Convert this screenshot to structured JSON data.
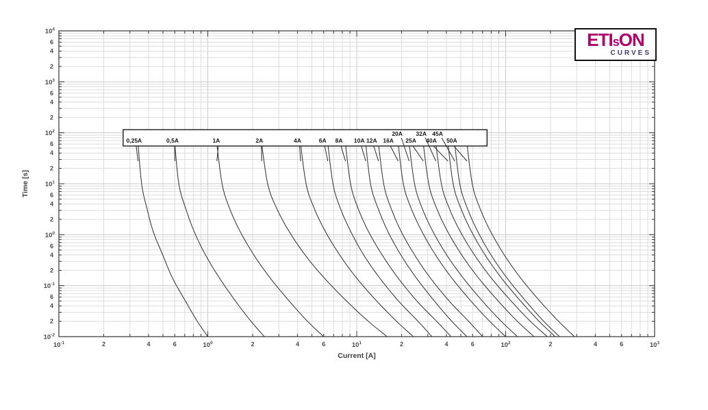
{
  "page": {
    "background": "#ffffff"
  },
  "logo": {
    "part1": "ETI",
    "part2": "s",
    "part3": "ON",
    "subtitle": "CURVES",
    "main_color": "#b0046a",
    "subtitle_color": "#403672"
  },
  "chart_data": {
    "type": "line",
    "title": "",
    "xlabel": "Current [A]",
    "ylabel": "Time [s]",
    "xscale": "log",
    "yscale": "log",
    "xlim": [
      0.1,
      1000
    ],
    "ylim": [
      0.01,
      10000
    ],
    "grid": true,
    "x_major_exponents": [
      -1,
      0,
      1,
      2,
      3
    ],
    "y_major_exponents": [
      -2,
      -1,
      0,
      1,
      2,
      3,
      4
    ],
    "labeled_minor_multiples": [
      2,
      4,
      6
    ],
    "curve_color": "#3c3c3c",
    "grid_minor_color": "#dcdcdc",
    "grid_major_color": "#c9c9c9",
    "axis_color": "#333333",
    "tick_label_color": "#4a4a4a",
    "t_samples": [
      60,
      9.6,
      3.3,
      1.15,
      0.39,
      0.14,
      0.049,
      0.02,
      0.01
    ],
    "series": [
      {
        "name": "0,25A",
        "label_row": "bottom",
        "label_anchor_current": 0.32,
        "currents": [
          0.34,
          0.36,
          0.39,
          0.43,
          0.5,
          0.58,
          0.71,
          0.85,
          1.0
        ]
      },
      {
        "name": "0,5A",
        "label_row": "bottom",
        "label_anchor_current": 0.58,
        "currents": [
          0.6,
          0.64,
          0.71,
          0.81,
          0.97,
          1.2,
          1.54,
          1.95,
          2.4
        ]
      },
      {
        "name": "1A",
        "label_row": "bottom",
        "label_anchor_current": 1.14,
        "currents": [
          1.15,
          1.25,
          1.4,
          1.65,
          2.05,
          2.63,
          3.54,
          4.67,
          6.0
        ]
      },
      {
        "name": "2A",
        "label_row": "bottom",
        "label_anchor_current": 2.22,
        "currents": [
          2.3,
          2.53,
          2.9,
          3.52,
          4.53,
          6.07,
          8.6,
          11.96,
          16.0
        ]
      },
      {
        "name": "4A",
        "label_row": "bottom",
        "label_anchor_current": 4.0,
        "currents": [
          4.2,
          4.58,
          5.18,
          6.16,
          7.73,
          10.0,
          13.7,
          18.5,
          24.0
        ]
      },
      {
        "name": "6A",
        "label_row": "bottom",
        "label_anchor_current": 5.9,
        "currents": [
          6.4,
          6.94,
          7.76,
          9.12,
          11.2,
          14.3,
          19.2,
          25.8,
          32.0
        ]
      },
      {
        "name": "8A",
        "label_row": "bottom",
        "label_anchor_current": 7.6,
        "currents": [
          8.4,
          9.11,
          10.2,
          12.0,
          14.9,
          19.0,
          25.5,
          34.4,
          43.0
        ]
      },
      {
        "name": "10A",
        "label_row": "bottom",
        "label_anchor_current": 10.4,
        "currents": [
          11.5,
          12.4,
          13.9,
          16.2,
          19.9,
          25.2,
          33.4,
          43.5,
          55.0
        ]
      },
      {
        "name": "12A",
        "label_row": "bottom",
        "label_anchor_current": 12.6,
        "currents": [
          14.0,
          15.2,
          17.0,
          19.9,
          24.6,
          31.3,
          42.0,
          56.4,
          70.0
        ]
      },
      {
        "name": "16A",
        "label_row": "bottom",
        "label_anchor_current": 16.3,
        "currents": [
          19.0,
          20.6,
          23.2,
          27.4,
          34.0,
          43.6,
          58.8,
          78.1,
          100.0
        ]
      },
      {
        "name": "20A",
        "label_row": "top",
        "label_anchor_current": 18.7,
        "currents": [
          22.5,
          24.5,
          27.5,
          32.5,
          40.4,
          52.0,
          70.2,
          93.4,
          120.0
        ]
      },
      {
        "name": "25A",
        "label_row": "bottom",
        "label_anchor_current": 23.1,
        "currents": [
          28.0,
          30.5,
          34.4,
          40.8,
          51.0,
          65.9,
          89.7,
          119.8,
          155.0
        ]
      },
      {
        "name": "32A",
        "label_row": "top",
        "label_anchor_current": 27.1,
        "currents": [
          34.0,
          37.1,
          41.8,
          49.6,
          62.1,
          80.3,
          109.5,
          146.5,
          190.0
        ]
      },
      {
        "name": "40A",
        "label_row": "bottom",
        "label_anchor_current": 31.7,
        "currents": [
          41.0,
          44.5,
          50.0,
          59.0,
          73.2,
          93.9,
          126.7,
          167.7,
          215.0
        ]
      },
      {
        "name": "45A",
        "label_row": "top",
        "label_anchor_current": 34.9,
        "currents": [
          45.5,
          49.3,
          55.3,
          65.0,
          80.2,
          102.3,
          137.1,
          180.1,
          230.0
        ]
      },
      {
        "name": "50A",
        "label_row": "bottom",
        "label_anchor_current": 43.5,
        "currents": [
          55.0,
          59.8,
          67.2,
          79.3,
          98.5,
          126.3,
          170.5,
          226.5,
          290.0
        ]
      }
    ],
    "label_box": {
      "current_from": 0.27,
      "current_to": 75,
      "time_from": 55,
      "time_to": 115,
      "border_color": "#1a1a1a",
      "fill": "#ffffff"
    }
  }
}
